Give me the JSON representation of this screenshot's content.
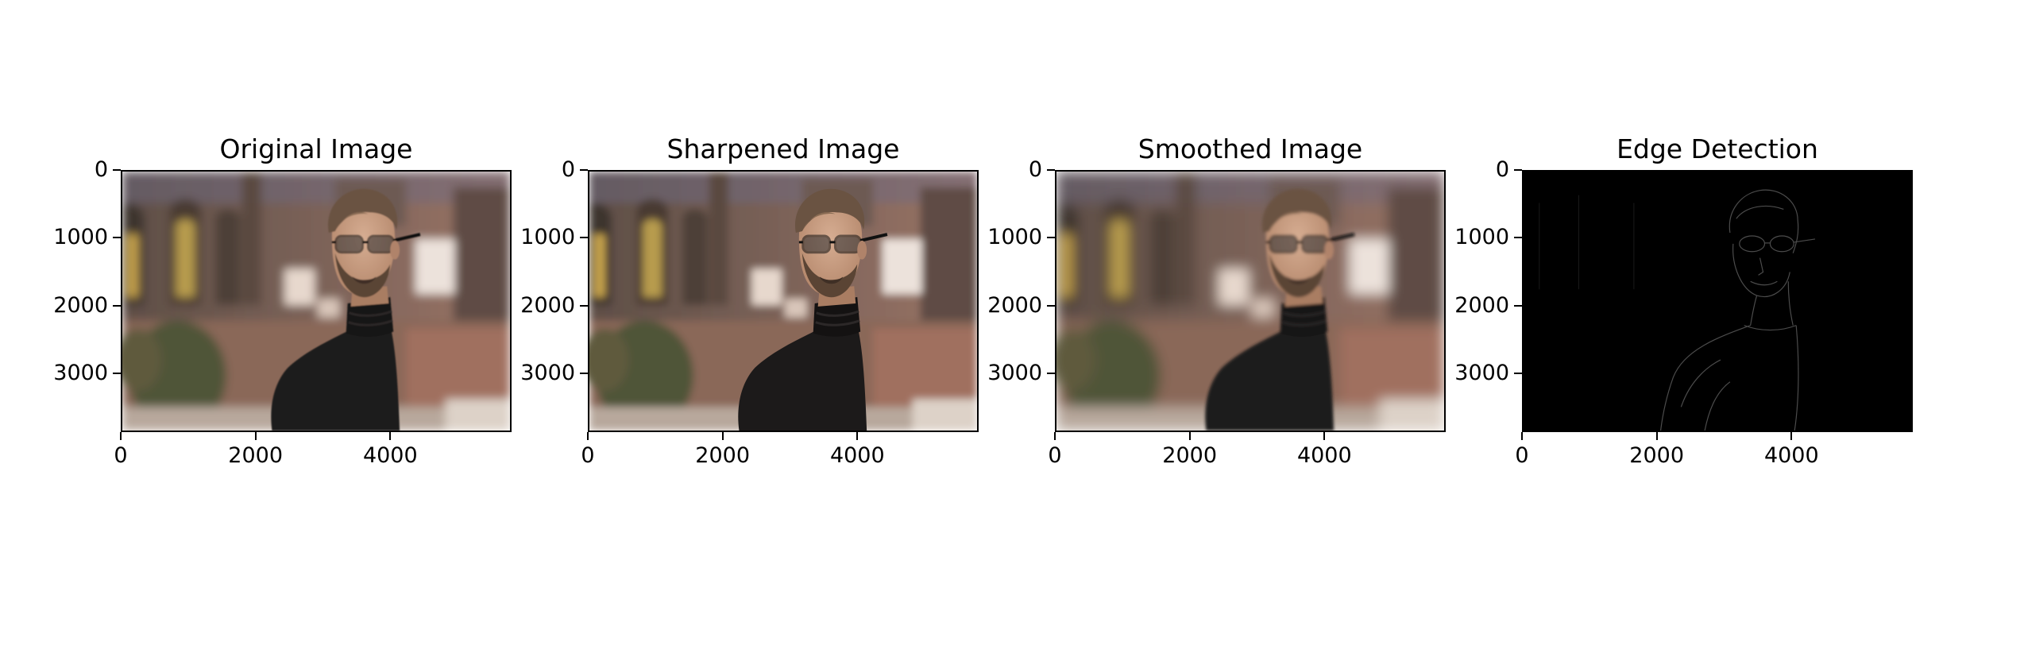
{
  "panels": [
    {
      "title": "Original Image",
      "variant": "original"
    },
    {
      "title": "Sharpened Image",
      "variant": "sharpened"
    },
    {
      "title": "Smoothed Image",
      "variant": "smoothed"
    },
    {
      "title": "Edge Detection",
      "variant": "edges"
    }
  ],
  "axes": {
    "y_ticks": [
      "0",
      "1000",
      "2000",
      "3000"
    ],
    "x_ticks": [
      "0",
      "2000",
      "4000"
    ],
    "y_values": [
      0,
      1000,
      2000,
      3000
    ],
    "x_values": [
      0,
      2000,
      4000
    ],
    "image_width": 5800,
    "image_height": 3870
  },
  "image_subject": "man in black turtleneck wearing glasses in front of brick building",
  "colors": {
    "edge_background": "#000000",
    "turtleneck": "#1c1a1a",
    "brick_wall": "#8a6a5c"
  }
}
